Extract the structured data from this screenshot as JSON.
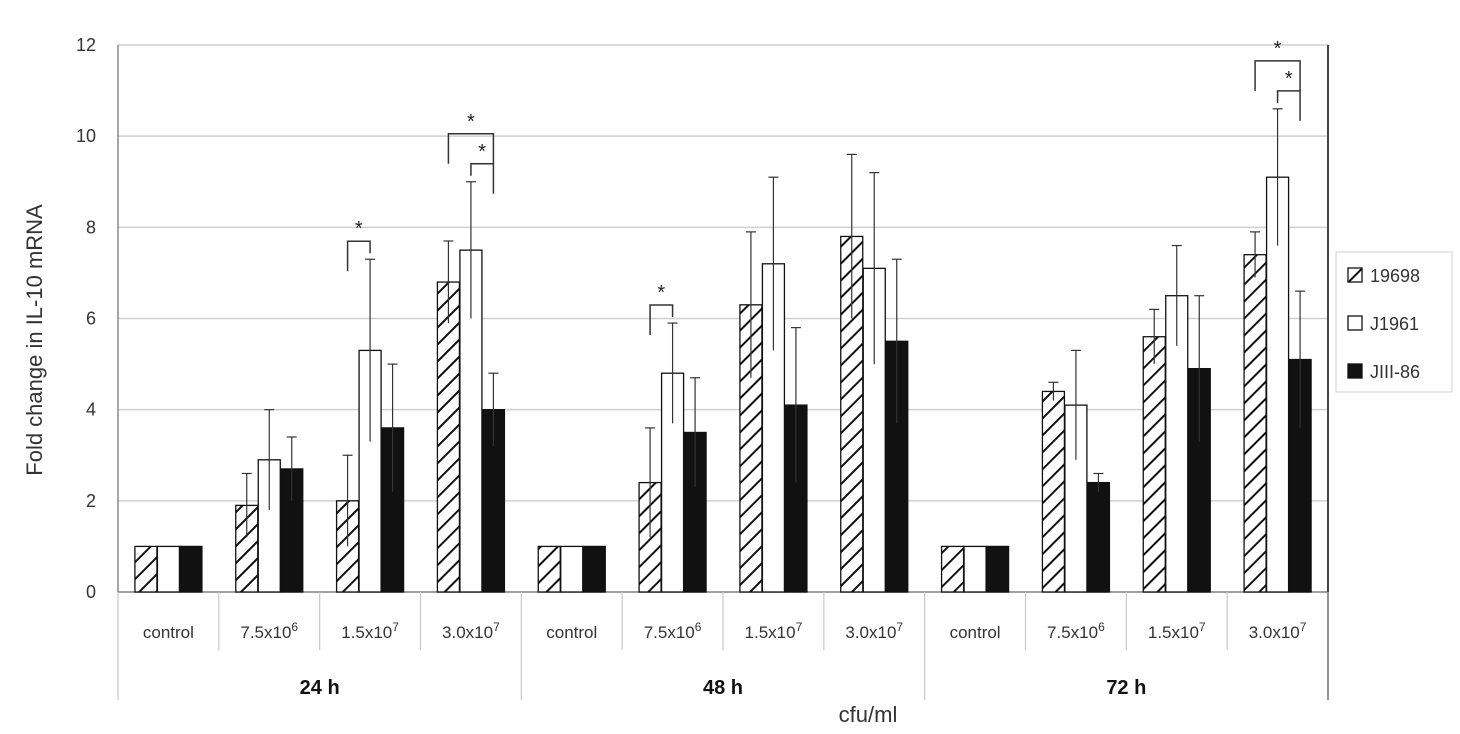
{
  "chart_data": {
    "type": "bar",
    "xlabel": "cfu/ml",
    "ylabel": "Fold change in IL-10 mRNA",
    "ylim": [
      0,
      12
    ],
    "yticks": [
      "0",
      "2",
      "4",
      "6",
      "8",
      "10",
      "12"
    ],
    "grid": true,
    "legend_position": "right",
    "groups": [
      {
        "label": "24 h",
        "categories": [
          {
            "base": "control",
            "exp": ""
          },
          {
            "base": "7.5x10",
            "exp": "6"
          },
          {
            "base": "1.5x10",
            "exp": "7"
          },
          {
            "base": "3.0x10",
            "exp": "7"
          }
        ]
      },
      {
        "label": "48 h",
        "categories": [
          {
            "base": "control",
            "exp": ""
          },
          {
            "base": "7.5x10",
            "exp": "6"
          },
          {
            "base": "1.5x10",
            "exp": "7"
          },
          {
            "base": "3.0x10",
            "exp": "7"
          }
        ]
      },
      {
        "label": "72 h",
        "categories": [
          {
            "base": "control",
            "exp": ""
          },
          {
            "base": "7.5x10",
            "exp": "6"
          },
          {
            "base": "1.5x10",
            "exp": "7"
          },
          {
            "base": "3.0x10",
            "exp": "7"
          }
        ]
      }
    ],
    "series": [
      {
        "name": "19698",
        "pattern": "hatched",
        "values": [
          1,
          1.9,
          2.0,
          6.8,
          1,
          2.4,
          6.3,
          7.8,
          1,
          4.4,
          5.6,
          7.4
        ],
        "errors": [
          0,
          0.7,
          1.0,
          0.9,
          0,
          1.2,
          1.6,
          1.8,
          0,
          0.2,
          0.6,
          0.5
        ]
      },
      {
        "name": "J1961",
        "pattern": "open",
        "values": [
          1,
          2.9,
          5.3,
          7.5,
          1,
          4.8,
          7.2,
          7.1,
          1,
          4.1,
          6.5,
          9.1
        ],
        "errors": [
          0,
          1.1,
          2.0,
          1.5,
          0,
          1.1,
          1.9,
          2.1,
          0,
          1.2,
          1.1,
          1.5
        ]
      },
      {
        "name": "JIII-86",
        "pattern": "solid",
        "values": [
          1,
          2.7,
          3.6,
          4.0,
          1,
          3.5,
          4.1,
          5.5,
          1,
          2.4,
          4.9,
          5.1
        ],
        "errors": [
          0,
          0.7,
          1.4,
          0.8,
          0,
          1.2,
          1.7,
          1.8,
          0,
          0.2,
          1.6,
          1.5
        ]
      }
    ],
    "significance": [
      {
        "category_index": 2,
        "from_series": 0,
        "to_series": 1,
        "label": "*"
      },
      {
        "category_index": 3,
        "from_series": 0,
        "to_series": 2,
        "label": "*"
      },
      {
        "category_index": 3,
        "from_series": 1,
        "to_series": 2,
        "label": "*"
      },
      {
        "category_index": 5,
        "from_series": 0,
        "to_series": 1,
        "label": "*"
      },
      {
        "category_index": 11,
        "from_series": 0,
        "to_series": 2,
        "label": "*"
      },
      {
        "category_index": 11,
        "from_series": 1,
        "to_series": 2,
        "label": "*"
      }
    ]
  }
}
